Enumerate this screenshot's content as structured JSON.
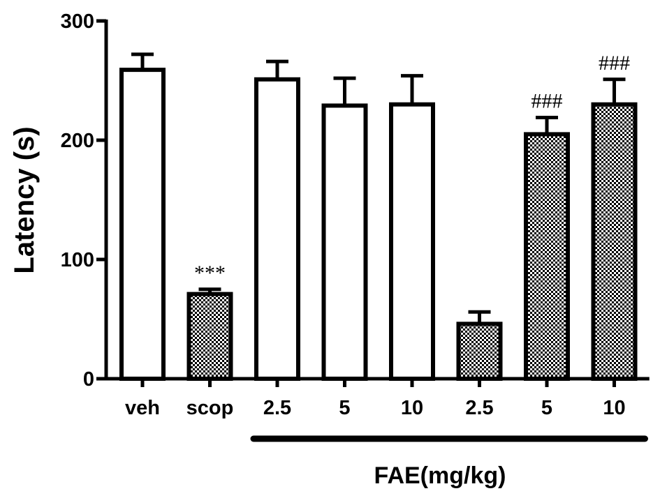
{
  "chart_data": {
    "type": "bar",
    "categories": [
      "veh",
      "scop",
      "2.5",
      "5",
      "10",
      "2.5",
      "5",
      "10"
    ],
    "values": [
      259,
      71,
      251,
      229,
      230,
      46,
      205,
      230
    ],
    "errors": [
      13,
      4,
      15,
      23,
      24,
      10,
      14,
      21
    ],
    "fills": [
      "open",
      "checkered",
      "open",
      "open",
      "open",
      "checkered",
      "checkered",
      "checkered"
    ],
    "annotations": [
      "",
      "***",
      "",
      "",
      "",
      "",
      "###",
      "###"
    ],
    "ylabel": "Latency (s)",
    "xlabel": "FAE(mg/kg)",
    "ylim": [
      0,
      300
    ],
    "yticks": [
      0,
      100,
      200,
      300
    ],
    "group_bar": {
      "from_category_index": 2,
      "to_category_index": 7
    },
    "grid": false,
    "legend": "none"
  }
}
